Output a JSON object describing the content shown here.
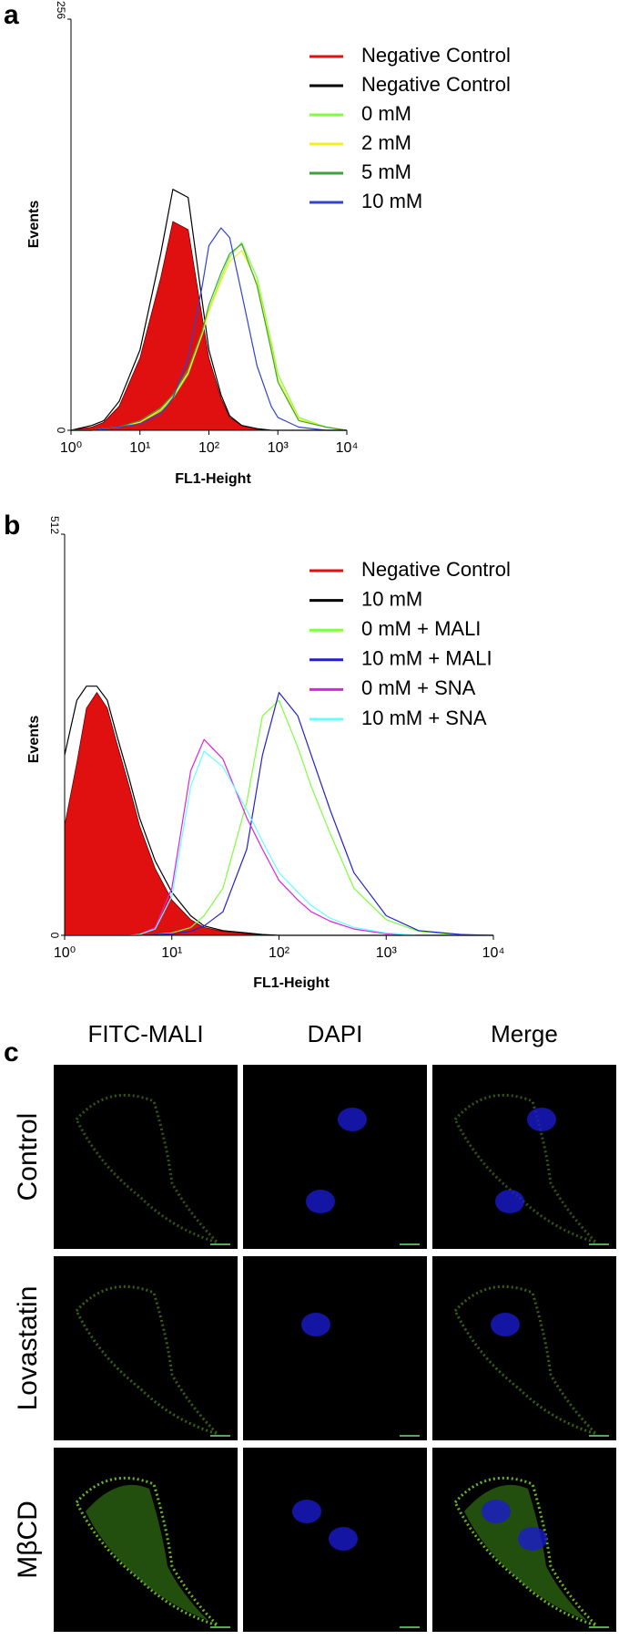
{
  "chart_data": [
    {
      "type": "line",
      "panel": "a",
      "x_label": "FL1-Height",
      "y_label": "Events",
      "xscale": "log",
      "xlim": [
        1,
        10000
      ],
      "ylim": [
        0,
        256
      ],
      "xticks": [
        {
          "value": 1,
          "label": "10⁰"
        },
        {
          "value": 10,
          "label": "10¹"
        },
        {
          "value": 100,
          "label": "10²"
        },
        {
          "value": 1000,
          "label": "10³"
        },
        {
          "value": 10000,
          "label": "10⁴"
        }
      ],
      "yticks": [
        0,
        256
      ],
      "x": [
        1,
        2,
        3,
        5,
        10,
        20,
        30,
        50,
        80,
        100,
        150,
        200,
        300,
        500,
        800,
        1000,
        2000,
        5000,
        10000
      ],
      "series": [
        {
          "name": "Negative Control",
          "color": "#e01010",
          "fill": true,
          "values": [
            0,
            2,
            5,
            15,
            45,
            95,
            130,
            125,
            70,
            45,
            20,
            8,
            3,
            1,
            0,
            0,
            0,
            0,
            0
          ]
        },
        {
          "name": "Negative Control",
          "color": "#000000",
          "values": [
            0,
            3,
            6,
            18,
            50,
            110,
            150,
            145,
            80,
            50,
            22,
            9,
            3,
            1,
            0,
            0,
            0,
            0,
            0
          ]
        },
        {
          "name": "0 mM",
          "color": "#7fff3f",
          "values": [
            0,
            0,
            1,
            2,
            5,
            12,
            20,
            35,
            60,
            75,
            95,
            108,
            117,
            95,
            55,
            35,
            8,
            2,
            0
          ]
        },
        {
          "name": "2 mM",
          "color": "#f2f21a",
          "values": [
            0,
            0,
            1,
            2,
            5,
            13,
            21,
            36,
            60,
            74,
            93,
            105,
            112,
            92,
            52,
            32,
            7,
            2,
            0
          ]
        },
        {
          "name": "5 mM",
          "color": "#3fa03f",
          "values": [
            0,
            0,
            1,
            2,
            6,
            14,
            22,
            38,
            62,
            78,
            98,
            110,
            116,
            90,
            50,
            30,
            6,
            2,
            0
          ]
        },
        {
          "name": "10 mM",
          "color": "#3344cc",
          "values": [
            0,
            0,
            1,
            2,
            4,
            10,
            20,
            45,
            90,
            115,
            126,
            120,
            85,
            40,
            15,
            8,
            2,
            0,
            0
          ]
        }
      ]
    },
    {
      "type": "line",
      "panel": "b",
      "x_label": "FL1-Height",
      "y_label": "Events",
      "xscale": "log",
      "xlim": [
        1,
        10000
      ],
      "ylim": [
        0,
        512
      ],
      "xticks": [
        {
          "value": 1,
          "label": "10⁰"
        },
        {
          "value": 10,
          "label": "10¹"
        },
        {
          "value": 100,
          "label": "10²"
        },
        {
          "value": 1000,
          "label": "10³"
        },
        {
          "value": 10000,
          "label": "10⁴"
        }
      ],
      "yticks": [
        0,
        512
      ],
      "x": [
        1,
        1.3,
        1.6,
        2,
        2.5,
        3,
        4,
        5,
        7,
        10,
        15,
        20,
        30,
        50,
        70,
        100,
        150,
        200,
        300,
        500,
        1000,
        2000,
        5000,
        10000
      ],
      "series": [
        {
          "name": "Negative Control",
          "color": "#e01010",
          "fill": true,
          "values": [
            140,
            220,
            290,
            310,
            290,
            250,
            190,
            140,
            85,
            45,
            20,
            10,
            5,
            2,
            1,
            0,
            0,
            0,
            0,
            0,
            0,
            0,
            0,
            0
          ]
        },
        {
          "name": "10 mM",
          "color": "#000000",
          "values": [
            230,
            300,
            318,
            318,
            300,
            260,
            200,
            150,
            95,
            55,
            25,
            12,
            6,
            3,
            1,
            0,
            0,
            0,
            0,
            0,
            0,
            0,
            0,
            0
          ]
        },
        {
          "name": "0 mM + MALI",
          "color": "#7fff3f",
          "values": [
            0,
            0,
            0,
            0,
            0,
            0,
            0,
            0,
            1,
            3,
            10,
            25,
            60,
            170,
            280,
            300,
            240,
            190,
            130,
            60,
            20,
            5,
            0,
            0
          ]
        },
        {
          "name": "10 mM + MALI",
          "color": "#2222cc",
          "values": [
            0,
            0,
            0,
            0,
            0,
            0,
            0,
            0,
            1,
            2,
            5,
            12,
            30,
            110,
            230,
            310,
            280,
            230,
            160,
            80,
            25,
            6,
            1,
            0
          ]
        },
        {
          "name": "0 mM + SNA",
          "color": "#dd22dd",
          "values": [
            0,
            0,
            0,
            0,
            0,
            0,
            0,
            1,
            10,
            60,
            210,
            250,
            225,
            150,
            110,
            70,
            45,
            30,
            18,
            8,
            2,
            0,
            0,
            0
          ]
        },
        {
          "name": "10 mM + SNA",
          "color": "#66ffff",
          "values": [
            0,
            0,
            0,
            0,
            0,
            0,
            0,
            1,
            8,
            50,
            190,
            235,
            215,
            160,
            120,
            80,
            55,
            38,
            22,
            10,
            3,
            0,
            0,
            0
          ]
        }
      ]
    }
  ],
  "panel_c": {
    "panel": "c",
    "columns": [
      "FITC-MALI",
      "DAPI",
      "Merge"
    ],
    "rows": [
      "Control",
      "Lovastatin",
      "MβCD"
    ]
  }
}
